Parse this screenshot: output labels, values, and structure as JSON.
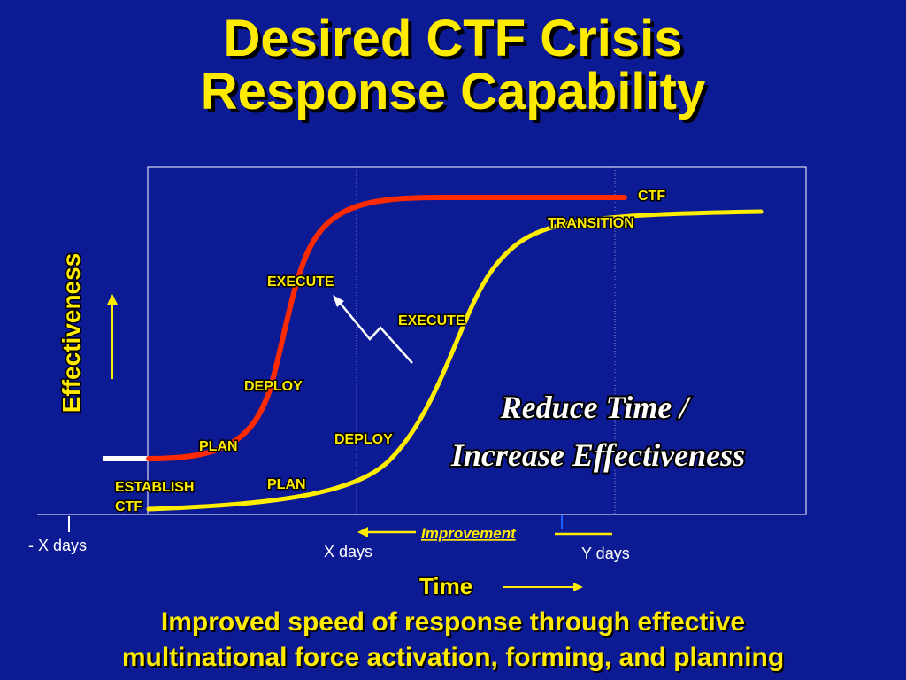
{
  "title": {
    "line1": "Desired CTF Crisis",
    "line2": "Response Capability"
  },
  "axes": {
    "y_label": "Effectiveness",
    "x_label": "Time",
    "ticks": {
      "minus_x_days": "- X days",
      "x_days": "X days",
      "y_days": "Y days"
    },
    "improvement_label": "Improvement"
  },
  "curves": {
    "desired": {
      "color": "#ff2a00",
      "labels": {
        "plan": "PLAN",
        "deploy": "DEPLOY",
        "execute": "EXECUTE",
        "ctf": "CTF"
      }
    },
    "current": {
      "color": "#ffee00",
      "labels": {
        "establish": "ESTABLISH",
        "ctf": "CTF",
        "plan": "PLAN",
        "deploy": "DEPLOY",
        "execute": "EXECUTE",
        "transition": "TRANSITION"
      }
    }
  },
  "callout": {
    "line1": "Reduce Time /",
    "line2": "Increase Effectiveness"
  },
  "footer": {
    "line1": "Improved speed of response through effective",
    "line2": "multinational force activation, forming, and planning"
  },
  "colors": {
    "background": "#0c1a94",
    "accent_yellow": "#ffeb00",
    "desired_red": "#ff2a00",
    "text_white": "#ffffff"
  }
}
